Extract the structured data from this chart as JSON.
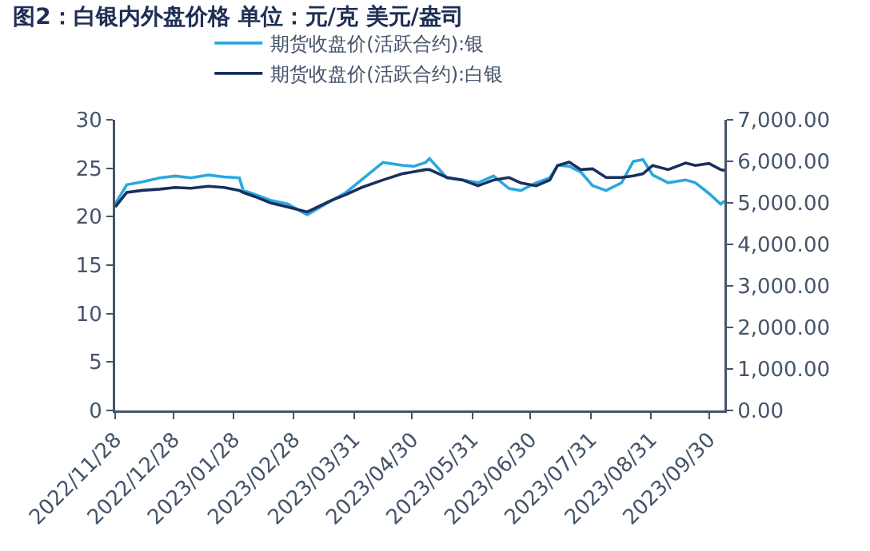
{
  "chart_data": {
    "type": "line",
    "title": "图2：白银内外盘价格 单位：元/克 美元/盎司",
    "x": [
      "2022-11-28",
      "2022-12-04",
      "2022-12-12",
      "2022-12-21",
      "2022-12-29",
      "2023-01-06",
      "2023-01-15",
      "2023-01-23",
      "2023-01-31",
      "2023-02-02",
      "2023-02-08",
      "2023-02-16",
      "2023-02-25",
      "2023-03-07",
      "2023-03-19",
      "2023-03-27",
      "2023-04-04",
      "2023-04-15",
      "2023-04-25",
      "2023-05-01",
      "2023-05-07",
      "2023-05-09",
      "2023-05-18",
      "2023-05-26",
      "2023-06-03",
      "2023-06-11",
      "2023-06-19",
      "2023-06-25",
      "2023-07-03",
      "2023-07-10",
      "2023-07-14",
      "2023-07-20",
      "2023-07-26",
      "2023-08-01",
      "2023-08-08",
      "2023-08-16",
      "2023-08-22",
      "2023-08-27",
      "2023-09-01",
      "2023-09-09",
      "2023-09-18",
      "2023-09-23",
      "2023-09-30",
      "2023-10-06",
      "2023-10-08"
    ],
    "series": [
      {
        "name": "期货收盘价(活跃合约):银",
        "color": "#29a8e0",
        "values": [
          21.3,
          23.3,
          23.6,
          24.0,
          24.2,
          24.0,
          24.3,
          24.1,
          24.0,
          22.7,
          22.3,
          21.7,
          21.3,
          20.2,
          21.6,
          22.5,
          23.8,
          25.6,
          25.3,
          25.2,
          25.6,
          26.0,
          24.0,
          23.8,
          23.5,
          24.2,
          22.9,
          22.7,
          23.5,
          24.0,
          25.3,
          25.2,
          24.6,
          23.2,
          22.7,
          23.5,
          25.7,
          25.9,
          24.3,
          23.5,
          23.8,
          23.5,
          22.4,
          21.3,
          21.6
        ]
      },
      {
        "name": "期货收盘价(活跃合约):白银",
        "color": "#1b2f5e",
        "axis": "y2",
        "values": [
          4900,
          5250,
          5300,
          5330,
          5370,
          5350,
          5400,
          5370,
          5300,
          5250,
          5150,
          5000,
          4900,
          4780,
          5050,
          5200,
          5370,
          5550,
          5700,
          5750,
          5800,
          5800,
          5610,
          5550,
          5410,
          5550,
          5610,
          5480,
          5410,
          5550,
          5900,
          5980,
          5800,
          5820,
          5610,
          5610,
          5650,
          5700,
          5900,
          5800,
          5960,
          5900,
          5950,
          5800,
          5780
        ]
      }
    ],
    "xlim": [
      "2022-11-28",
      "2023-10-08"
    ],
    "xticks": [
      {
        "value": "2022-11-28",
        "label": "2022/11/28"
      },
      {
        "value": "2022-12-28",
        "label": "2022/12/28"
      },
      {
        "value": "2023-01-28",
        "label": "2023/01/28"
      },
      {
        "value": "2023-02-28",
        "label": "2023/02/28"
      },
      {
        "value": "2023-03-31",
        "label": "2023/03/31"
      },
      {
        "value": "2023-04-30",
        "label": "2023/04/30"
      },
      {
        "value": "2023-05-31",
        "label": "2023/05/31"
      },
      {
        "value": "2023-06-30",
        "label": "2023/06/30"
      },
      {
        "value": "2023-07-31",
        "label": "2023/07/31"
      },
      {
        "value": "2023-08-31",
        "label": "2023/08/31"
      },
      {
        "value": "2023-09-30",
        "label": "2023/09/30"
      }
    ],
    "ylim": [
      0,
      30
    ],
    "yticks": [
      0,
      5,
      10,
      15,
      20,
      25,
      30
    ],
    "y2lim": [
      0,
      7000
    ],
    "y2ticks": [
      {
        "value": 0,
        "label": "0.00"
      },
      {
        "value": 1000,
        "label": "1,000.00"
      },
      {
        "value": 2000,
        "label": "2,000.00"
      },
      {
        "value": 3000,
        "label": "3,000.00"
      },
      {
        "value": 4000,
        "label": "4,000.00"
      },
      {
        "value": 5000,
        "label": "5,000.00"
      },
      {
        "value": 6000,
        "label": "6,000.00"
      },
      {
        "value": 7000,
        "label": "7,000.00"
      }
    ],
    "grid": false,
    "legend": "top",
    "marker": "none",
    "line_style": "solid"
  }
}
